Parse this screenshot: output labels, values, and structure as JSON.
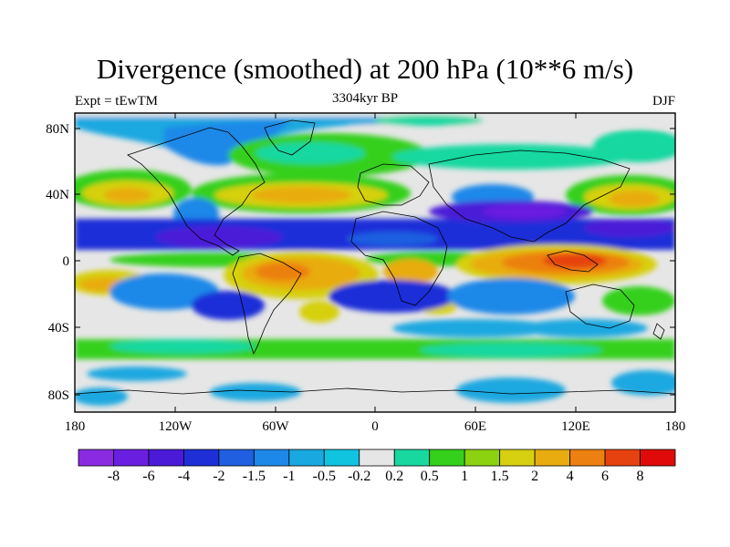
{
  "header": {
    "title": "Divergence (smoothed) at 200 hPa (10**6 m/s)",
    "left": "Expt = tEwTM",
    "center": "3304kyr BP",
    "right": "DJF"
  },
  "map": {
    "lat_ticks": [
      "80N",
      "40N",
      "0",
      "40S",
      "80S"
    ],
    "lon_ticks": [
      "180",
      "120W",
      "60W",
      "0",
      "60E",
      "120E",
      "180"
    ]
  },
  "colorbar": {
    "labels": [
      "-8",
      "-6",
      "-4",
      "-2",
      "-1.5",
      "-1",
      "-0.5",
      "-0.2",
      "0.2",
      "0.5",
      "1",
      "1.5",
      "2",
      "4",
      "6",
      "8"
    ],
    "colors": [
      "#8a2be2",
      "#6a1fe0",
      "#4b1ad8",
      "#1f2fd8",
      "#1f5fe0",
      "#1e88e8",
      "#1aa8e0",
      "#10c4e0",
      "#e6e6e6",
      "#18d8a0",
      "#34d01c",
      "#8cd210",
      "#d6d010",
      "#e8ac10",
      "#ec8010",
      "#e6420f",
      "#e00a0a"
    ]
  }
}
